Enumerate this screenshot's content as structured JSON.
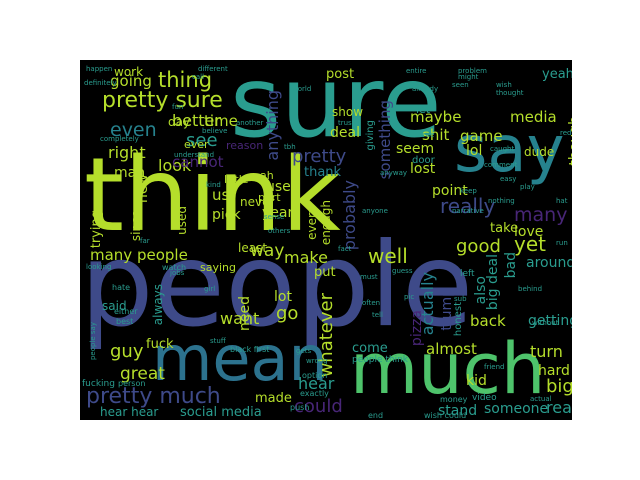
{
  "colors": {
    "background": "#000000",
    "page": "#ffffff"
  },
  "words": [
    {
      "text": "sure",
      "color": "#2a9d8f"
    },
    {
      "text": "think",
      "color": "#b5de2b"
    },
    {
      "text": "people",
      "color": "#3e4a89"
    },
    {
      "text": "say",
      "color": "#26828e"
    },
    {
      "text": "mean",
      "color": "#2c728e"
    },
    {
      "text": "much",
      "color": "#4ec36b"
    },
    {
      "text": "pretty sure",
      "color": "#b5de2b"
    },
    {
      "text": "pretty much",
      "color": "#3e4a89"
    },
    {
      "text": "thing",
      "color": "#b5de2b"
    },
    {
      "text": "even",
      "color": "#26828e"
    },
    {
      "text": "going",
      "color": "#b5de2b"
    },
    {
      "text": "better",
      "color": "#b5de2b"
    },
    {
      "text": "time",
      "color": "#b5de2b"
    },
    {
      "text": "see",
      "color": "#2a9d8f"
    },
    {
      "text": "right",
      "color": "#b5de2b"
    },
    {
      "text": "look",
      "color": "#b5de2b"
    },
    {
      "text": "new",
      "color": "#b5de2b"
    },
    {
      "text": "man",
      "color": "#b5de2b"
    },
    {
      "text": "cannot",
      "color": "#482677"
    },
    {
      "text": "anything",
      "color": "#3e4a89"
    },
    {
      "text": "pretty",
      "color": "#3e4a89"
    },
    {
      "text": "thank",
      "color": "#26828e"
    },
    {
      "text": "probably",
      "color": "#3e4a89"
    },
    {
      "text": "something",
      "color": "#3e4a89"
    },
    {
      "text": "really",
      "color": "#3e4a89"
    },
    {
      "text": "maybe",
      "color": "#b5de2b"
    },
    {
      "text": "shit",
      "color": "#b5de2b"
    },
    {
      "text": "seem",
      "color": "#b5de2b"
    },
    {
      "text": "lost",
      "color": "#b5de2b"
    },
    {
      "text": "game",
      "color": "#b5de2b"
    },
    {
      "text": "media",
      "color": "#b5de2b"
    },
    {
      "text": "though",
      "color": "#b5de2b"
    },
    {
      "text": "lol",
      "color": "#b5de2b"
    },
    {
      "text": "point",
      "color": "#b5de2b"
    },
    {
      "text": "many",
      "color": "#482677"
    },
    {
      "text": "many people",
      "color": "#b5de2b"
    },
    {
      "text": "way",
      "color": "#b5de2b"
    },
    {
      "text": "make",
      "color": "#b5de2b"
    },
    {
      "text": "well",
      "color": "#b5de2b"
    },
    {
      "text": "good",
      "color": "#b5de2b"
    },
    {
      "text": "yet",
      "color": "#b5de2b"
    },
    {
      "text": "love",
      "color": "#b5de2b"
    },
    {
      "text": "take",
      "color": "#b5de2b"
    },
    {
      "text": "actually",
      "color": "#26828e"
    },
    {
      "text": "also",
      "color": "#2a9d8f"
    },
    {
      "text": "bad",
      "color": "#2a9d8f"
    },
    {
      "text": "big deal",
      "color": "#2a9d8f"
    },
    {
      "text": "around",
      "color": "#2a9d8f"
    },
    {
      "text": "getting",
      "color": "#2a9d8f"
    },
    {
      "text": "back",
      "color": "#b5de2b"
    },
    {
      "text": "almost",
      "color": "#b5de2b"
    },
    {
      "text": "turn",
      "color": "#b5de2b"
    },
    {
      "text": "hard",
      "color": "#b5de2b"
    },
    {
      "text": "big",
      "color": "#b5de2b"
    },
    {
      "text": "real",
      "color": "#2a9d8f"
    },
    {
      "text": "someone",
      "color": "#2a9d8f"
    },
    {
      "text": "stand",
      "color": "#2a9d8f"
    },
    {
      "text": "kid",
      "color": "#b5de2b"
    },
    {
      "text": "could",
      "color": "#482677"
    },
    {
      "text": "hear",
      "color": "#2a9d8f"
    },
    {
      "text": "made",
      "color": "#b5de2b"
    },
    {
      "text": "great",
      "color": "#b5de2b"
    },
    {
      "text": "guy",
      "color": "#b5de2b"
    },
    {
      "text": "fuck",
      "color": "#b5de2b"
    },
    {
      "text": "want",
      "color": "#b5de2b"
    },
    {
      "text": "need",
      "color": "#b5de2b"
    },
    {
      "text": "go",
      "color": "#b5de2b"
    },
    {
      "text": "lot",
      "color": "#b5de2b"
    },
    {
      "text": "whatever",
      "color": "#b5de2b"
    },
    {
      "text": "trump",
      "color": "#3e4a89"
    },
    {
      "text": "pizza",
      "color": "#482677"
    },
    {
      "text": "come",
      "color": "#2a9d8f"
    },
    {
      "text": "social media",
      "color": "#2a9d8f"
    },
    {
      "text": "hear hear",
      "color": "#2a9d8f"
    },
    {
      "text": "said",
      "color": "#2a9d8f"
    },
    {
      "text": "always",
      "color": "#2a9d8f"
    },
    {
      "text": "us",
      "color": "#b5de2b"
    },
    {
      "text": "use",
      "color": "#b5de2b"
    },
    {
      "text": "pick",
      "color": "#b5de2b"
    },
    {
      "text": "year",
      "color": "#b5de2b"
    },
    {
      "text": "used",
      "color": "#b5de2b"
    },
    {
      "text": "since",
      "color": "#b5de2b"
    },
    {
      "text": "trying",
      "color": "#b5de2b"
    },
    {
      "text": "work",
      "color": "#b5de2b"
    },
    {
      "text": "day",
      "color": "#b5de2b"
    },
    {
      "text": "post",
      "color": "#b5de2b"
    },
    {
      "text": "show",
      "color": "#b5de2b"
    },
    {
      "text": "deal",
      "color": "#b5de2b"
    },
    {
      "text": "yeah",
      "color": "#2a9d8f"
    },
    {
      "text": "dude",
      "color": "#b5de2b"
    },
    {
      "text": "every",
      "color": "#b5de2b"
    },
    {
      "text": "enough",
      "color": "#b5de2b"
    },
    {
      "text": "put",
      "color": "#b5de2b"
    },
    {
      "text": "never",
      "color": "#b5de2b"
    },
    {
      "text": "least",
      "color": "#b5de2b"
    },
    {
      "text": "saying",
      "color": "#b5de2b"
    },
    {
      "text": "little",
      "color": "#b5de2b"
    },
    {
      "text": "part",
      "color": "#b5de2b"
    },
    {
      "text": "ever",
      "color": "#b5de2b"
    },
    {
      "text": "ah",
      "color": "#b5de2b"
    },
    {
      "text": "reason",
      "color": "#482677"
    },
    {
      "text": "let",
      "color": "#2a9d8f"
    },
    {
      "text": "giving",
      "color": "#2a9d8f"
    },
    {
      "text": "door",
      "color": "#2a9d8f"
    },
    {
      "text": "left",
      "color": "#2a9d8f"
    },
    {
      "text": "honest",
      "color": "#2a9d8f"
    },
    {
      "text": "people think",
      "color": "#2a9d8f"
    },
    {
      "text": "black first",
      "color": "#2a9d8f"
    },
    {
      "text": "option",
      "color": "#2a9d8f"
    },
    {
      "text": "money",
      "color": "#2a9d8f"
    },
    {
      "text": "video",
      "color": "#2a9d8f"
    },
    {
      "text": "end",
      "color": "#2a9d8f"
    },
    {
      "text": "push",
      "color": "#2a9d8f"
    },
    {
      "text": "exactly",
      "color": "#2a9d8f"
    },
    {
      "text": "person",
      "color": "#2a9d8f"
    },
    {
      "text": "fucking",
      "color": "#2a9d8f"
    },
    {
      "text": "hate",
      "color": "#2a9d8f"
    },
    {
      "text": "best",
      "color": "#2a9d8f"
    },
    {
      "text": "either",
      "color": "#2a9d8f"
    },
    {
      "text": "watch",
      "color": "#2a9d8f"
    },
    {
      "text": "looking",
      "color": "#2a9d8f"
    },
    {
      "text": "far",
      "color": "#2a9d8f"
    },
    {
      "text": "kind",
      "color": "#2a9d8f"
    },
    {
      "text": "understand",
      "color": "#2a9d8f"
    },
    {
      "text": "believe",
      "color": "#2a9d8f"
    },
    {
      "text": "another",
      "color": "#2a9d8f"
    },
    {
      "text": "different",
      "color": "#2a9d8f"
    },
    {
      "text": "happen",
      "color": "#2a9d8f"
    },
    {
      "text": "definitely",
      "color": "#2a9d8f"
    },
    {
      "text": "completely",
      "color": "#2a9d8f"
    },
    {
      "text": "world",
      "color": "#2a9d8f"
    },
    {
      "text": "entire",
      "color": "#2a9d8f"
    },
    {
      "text": "problem",
      "color": "#2a9d8f"
    },
    {
      "text": "wish",
      "color": "#2a9d8f"
    },
    {
      "text": "thought",
      "color": "#2a9d8f"
    },
    {
      "text": "already",
      "color": "#2a9d8f"
    },
    {
      "text": "seen",
      "color": "#2a9d8f"
    },
    {
      "text": "trust",
      "color": "#2a9d8f"
    },
    {
      "text": "caught",
      "color": "#2a9d8f"
    },
    {
      "text": "reddit",
      "color": "#2a9d8f"
    },
    {
      "text": "comment",
      "color": "#2a9d8f"
    },
    {
      "text": "play",
      "color": "#2a9d8f"
    },
    {
      "text": "nothing",
      "color": "#2a9d8f"
    },
    {
      "text": "easy",
      "color": "#2a9d8f"
    },
    {
      "text": "hat",
      "color": "#2a9d8f"
    },
    {
      "text": "run",
      "color": "#2a9d8f"
    },
    {
      "text": "behind",
      "color": "#2a9d8f"
    },
    {
      "text": "without",
      "color": "#2a9d8f"
    },
    {
      "text": "actual",
      "color": "#2a9d8f"
    },
    {
      "text": "wish could",
      "color": "#2a9d8f"
    },
    {
      "text": "tell",
      "color": "#2a9d8f"
    },
    {
      "text": "often",
      "color": "#2a9d8f"
    },
    {
      "text": "anyway",
      "color": "#2a9d8f"
    },
    {
      "text": "anyone",
      "color": "#2a9d8f"
    },
    {
      "text": "guess",
      "color": "#2a9d8f"
    },
    {
      "text": "pic",
      "color": "#2a9d8f"
    },
    {
      "text": "sub",
      "color": "#2a9d8f"
    },
    {
      "text": "friend",
      "color": "#2a9d8f"
    },
    {
      "text": "might",
      "color": "#2a9d8f"
    },
    {
      "text": "stuff",
      "color": "#2a9d8f"
    },
    {
      "text": "gets",
      "color": "#2a9d8f"
    },
    {
      "text": "girl",
      "color": "#2a9d8f"
    },
    {
      "text": "people say",
      "color": "#2a9d8f"
    },
    {
      "text": "fact",
      "color": "#2a9d8f"
    },
    {
      "text": "must",
      "color": "#2a9d8f"
    },
    {
      "text": "wrong",
      "color": "#2a9d8f"
    },
    {
      "text": "others",
      "color": "#2a9d8f"
    },
    {
      "text": "tbh",
      "color": "#2a9d8f"
    },
    {
      "text": "fun",
      "color": "#2a9d8f"
    },
    {
      "text": "true",
      "color": "#2a9d8f"
    },
    {
      "text": "keep",
      "color": "#2a9d8f"
    },
    {
      "text": "narrative",
      "color": "#2a9d8f"
    },
    {
      "text": "call",
      "color": "#2a9d8f"
    },
    {
      "text": "sense",
      "color": "#2a9d8f"
    },
    {
      "text": "jobs",
      "color": "#2a9d8f"
    }
  ]
}
